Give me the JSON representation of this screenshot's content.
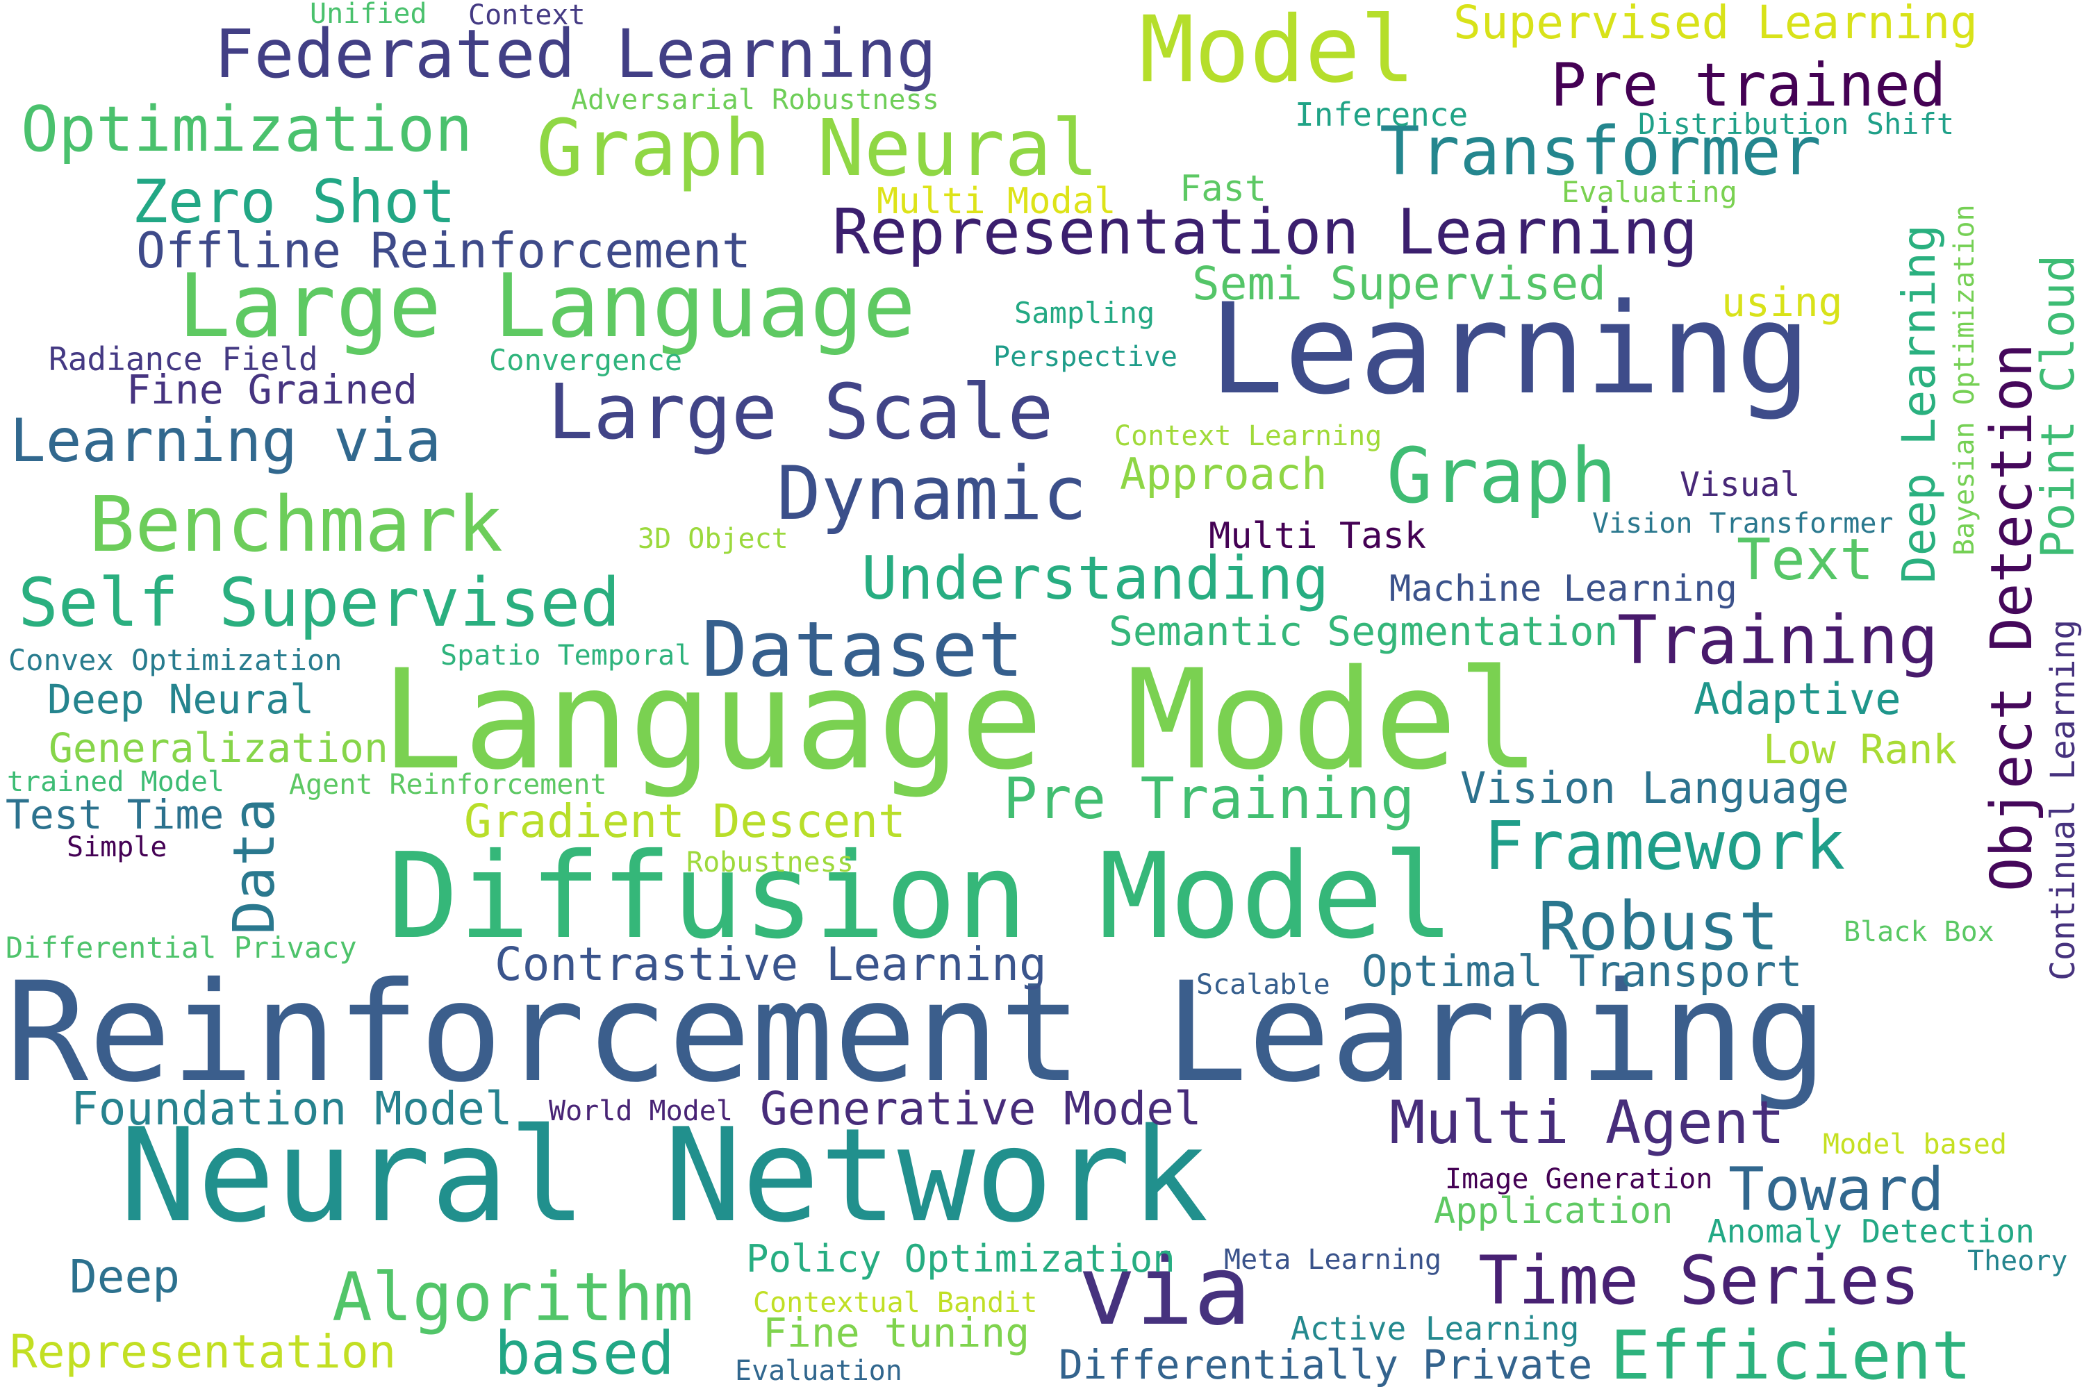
{
  "words": [
    {
      "text": "Reinforcement Learning",
      "color": "#3b5e8c"
    },
    {
      "text": "Language Model",
      "color": "#7ad151"
    },
    {
      "text": "Neural Network",
      "color": "#21908d"
    },
    {
      "text": "Diffusion Model",
      "color": "#35b779"
    },
    {
      "text": "Learning",
      "color": "#3e4c8a"
    },
    {
      "text": "Large Language",
      "color": "#5ec962"
    },
    {
      "text": "Model",
      "color": "#b5de2b"
    },
    {
      "text": "via",
      "color": "#46327e"
    },
    {
      "text": "Graph Neural",
      "color": "#8fd744"
    },
    {
      "text": "Federated Learning",
      "color": "#423f85"
    },
    {
      "text": "Representation Learning",
      "color": "#3b1f6e"
    },
    {
      "text": "Large Scale",
      "color": "#414487"
    },
    {
      "text": "Dataset",
      "color": "#355f8d"
    },
    {
      "text": "Transformer",
      "color": "#24868e"
    },
    {
      "text": "Benchmark",
      "color": "#6ccd5a"
    },
    {
      "text": "Self Supervised",
      "color": "#2aaf7f"
    },
    {
      "text": "Graph",
      "color": "#3fbc73"
    },
    {
      "text": "Dynamic",
      "color": "#3b4f8a"
    },
    {
      "text": "Algorithm",
      "color": "#52c569"
    },
    {
      "text": "Pre trained",
      "color": "#440154"
    },
    {
      "text": "Optimization",
      "color": "#4ac16d"
    },
    {
      "text": "Training",
      "color": "#481a6c"
    },
    {
      "text": "Time Series",
      "color": "#482173"
    },
    {
      "text": "Efficient",
      "color": "#2db27d"
    },
    {
      "text": "Zero Shot",
      "color": "#22a785"
    },
    {
      "text": "Understanding",
      "color": "#27ad81"
    },
    {
      "text": "Framework",
      "color": "#1f9e89"
    },
    {
      "text": "Robust",
      "color": "#2a768e"
    },
    {
      "text": "Learning via",
      "color": "#31688e"
    },
    {
      "text": "Multi Agent",
      "color": "#472d7b"
    },
    {
      "text": "Toward",
      "color": "#31678e"
    },
    {
      "text": "based",
      "color": "#21a685"
    },
    {
      "text": "Object Detection",
      "color": "#45085b"
    },
    {
      "text": "Data",
      "color": "#2a788e"
    },
    {
      "text": "Deep Learning",
      "color": "#2ab07f"
    },
    {
      "text": "Point Cloud",
      "color": "#3dbc74"
    },
    {
      "text": "Offline Reinforcement",
      "color": "#3e4a89"
    },
    {
      "text": "Pre Training",
      "color": "#42be71"
    },
    {
      "text": "Foundation Model",
      "color": "#26828e"
    },
    {
      "text": "Generative Model",
      "color": "#472c7a"
    },
    {
      "text": "Contrastive Learning",
      "color": "#3a548c"
    },
    {
      "text": "Gradient Descent",
      "color": "#b8de29"
    },
    {
      "text": "Representation",
      "color": "#c2df23"
    },
    {
      "text": "Supervised Learning",
      "color": "#d8e219"
    },
    {
      "text": "Semi Supervised",
      "color": "#54c568"
    },
    {
      "text": "Text",
      "color": "#56c667"
    },
    {
      "text": "Optimal Transport",
      "color": "#2d718e"
    },
    {
      "text": "Vision Language",
      "color": "#2c728e"
    },
    {
      "text": "Semantic Segmentation",
      "color": "#34b679"
    },
    {
      "text": "Adaptive",
      "color": "#1f968b"
    },
    {
      "text": "Approach",
      "color": "#8ed645"
    },
    {
      "text": "Fine Grained",
      "color": "#463480"
    },
    {
      "text": "Self",
      "color": "#ffffff"
    },
    {
      "text": "Policy Optimization",
      "color": "#26ad81"
    },
    {
      "text": "Deep Neural",
      "color": "#25848e"
    },
    {
      "text": "Generalization",
      "color": "#86d549"
    },
    {
      "text": "Test Time",
      "color": "#2c728e"
    },
    {
      "text": "Low Rank",
      "color": "#a8db34"
    },
    {
      "text": "Fine tuning",
      "color": "#7fd34e"
    },
    {
      "text": "Differentially Private",
      "color": "#33638d"
    },
    {
      "text": "Multi Task",
      "color": "#440154"
    },
    {
      "text": "Machine Learning",
      "color": "#3b528b"
    },
    {
      "text": "Multi Modal",
      "color": "#dde318"
    },
    {
      "text": "Deep",
      "color": "#2c718e"
    },
    {
      "text": "Fast",
      "color": "#5cc863"
    },
    {
      "text": "using",
      "color": "#d8e219"
    },
    {
      "text": "Visual",
      "color": "#482878"
    },
    {
      "text": "Active Learning",
      "color": "#23898e"
    },
    {
      "text": "Continual Learning",
      "color": "#46327e"
    },
    {
      "text": "Radiance Field",
      "color": "#443983"
    },
    {
      "text": "Convex Optimization",
      "color": "#287c8e"
    },
    {
      "text": "Differential Privacy",
      "color": "#4ec36b"
    },
    {
      "text": "Anomaly Detection",
      "color": "#22a884"
    },
    {
      "text": "Application",
      "color": "#5ec962"
    },
    {
      "text": "Image Generation",
      "color": "#440154"
    },
    {
      "text": "Bayesian Optimization",
      "color": "#75d054"
    },
    {
      "text": "Distribution Shift",
      "color": "#1fa088"
    },
    {
      "text": "Vision Transformer",
      "color": "#2a788e"
    },
    {
      "text": "Meta Learning",
      "color": "#3a538b"
    },
    {
      "text": "Inference",
      "color": "#20a386"
    },
    {
      "text": "Evaluating",
      "color": "#7ad151"
    },
    {
      "text": "Sampling",
      "color": "#23a983"
    },
    {
      "text": "Perspective",
      "color": "#1e9c89"
    },
    {
      "text": "Convergence",
      "color": "#2fb47c"
    },
    {
      "text": "Context Learning",
      "color": "#a0da39"
    },
    {
      "text": "Adversarial Robustness",
      "color": "#6ece58"
    },
    {
      "text": "Contextual Bandit",
      "color": "#c0df25"
    },
    {
      "text": "3D Object",
      "color": "#9bd93c"
    },
    {
      "text": "Spatio Temporal",
      "color": "#2eb37c"
    },
    {
      "text": "Black Box",
      "color": "#5ac864"
    },
    {
      "text": "Model based",
      "color": "#c5e021"
    },
    {
      "text": "World Model",
      "color": "#482475"
    },
    {
      "text": "Scalable",
      "color": "#355e8d"
    },
    {
      "text": "Theory",
      "color": "#25858e"
    },
    {
      "text": "Robustness",
      "color": "#9dd93b"
    },
    {
      "text": "Agent Reinforcement",
      "color": "#5cc863"
    },
    {
      "text": "trained Model",
      "color": "#3dbc74"
    },
    {
      "text": "Simple",
      "color": "#440154"
    },
    {
      "text": "Evaluation",
      "color": "#31678e"
    },
    {
      "text": "Unified",
      "color": "#4ac16d"
    },
    {
      "text": "Context",
      "color": "#443a83"
    }
  ]
}
